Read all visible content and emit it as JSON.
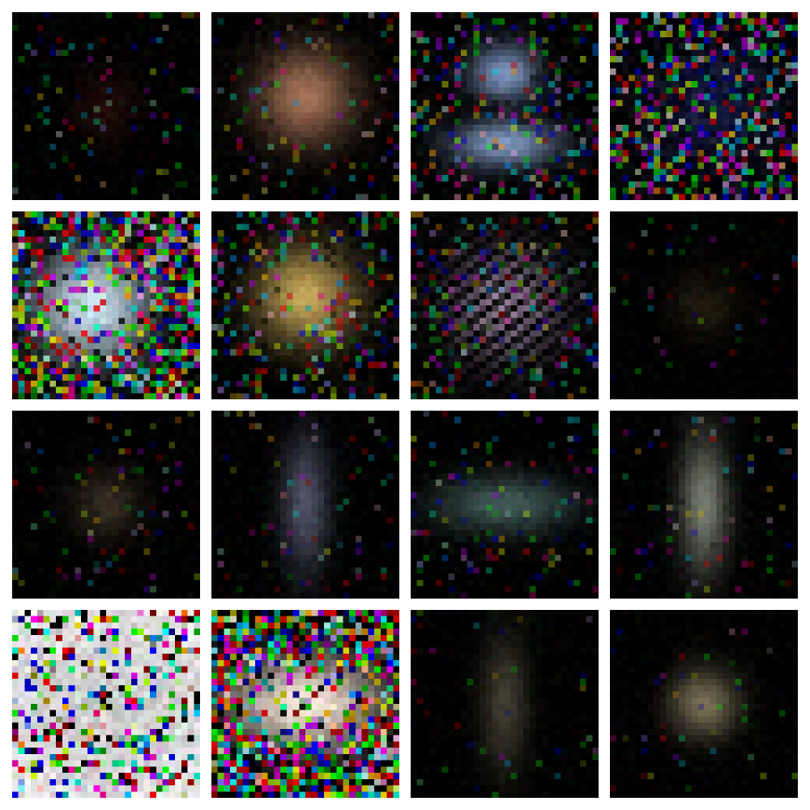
{
  "image_kind": "4x4 grid of noisy pixelated color samples on white background",
  "grid": {
    "rows": 4,
    "cols": 4,
    "pixels_per_tile": 30
  },
  "background_color": "#ffffff",
  "tiles": [
    {
      "id": "sample-1",
      "brightness": 0.18,
      "noise": 0.12,
      "tint": "#b03a2e",
      "shape": "small-blob"
    },
    {
      "id": "sample-2",
      "brightness": 0.7,
      "noise": 0.15,
      "tint": "#e8a37a",
      "shape": "blob"
    },
    {
      "id": "sample-3",
      "brightness": 0.75,
      "noise": 0.3,
      "tint": "#a8c8ff",
      "shape": "two-part"
    },
    {
      "id": "sample-4",
      "brightness": 0.35,
      "noise": 0.55,
      "tint": "#4050d0",
      "shape": "diffuse"
    },
    {
      "id": "sample-5",
      "brightness": 0.95,
      "noise": 0.75,
      "tint": "#d8f0ff",
      "shape": "large-blob"
    },
    {
      "id": "sample-6",
      "brightness": 0.8,
      "noise": 0.35,
      "tint": "#f5d070",
      "shape": "blob"
    },
    {
      "id": "sample-7",
      "brightness": 0.7,
      "noise": 0.25,
      "tint": "#e0c0e8",
      "shape": "scattered"
    },
    {
      "id": "sample-8",
      "brightness": 0.22,
      "noise": 0.05,
      "tint": "#8a6a3a",
      "shape": "small-blob"
    },
    {
      "id": "sample-9",
      "brightness": 0.3,
      "noise": 0.08,
      "tint": "#b09070",
      "shape": "small-blob"
    },
    {
      "id": "sample-10",
      "brightness": 0.45,
      "noise": 0.1,
      "tint": "#b0b8e0",
      "shape": "vertical"
    },
    {
      "id": "sample-11",
      "brightness": 0.45,
      "noise": 0.15,
      "tint": "#90c8c0",
      "shape": "horizontal"
    },
    {
      "id": "sample-12",
      "brightness": 0.55,
      "noise": 0.1,
      "tint": "#d8e0c8",
      "shape": "vertical"
    },
    {
      "id": "sample-13",
      "brightness": 1.0,
      "noise": 1.0,
      "tint": "#ffffff",
      "shape": "saturated"
    },
    {
      "id": "sample-14",
      "brightness": 1.0,
      "noise": 0.9,
      "tint": "#fff0e0",
      "shape": "wide-blob"
    },
    {
      "id": "sample-15",
      "brightness": 0.4,
      "noise": 0.06,
      "tint": "#a09878",
      "shape": "vertical"
    },
    {
      "id": "sample-16",
      "brightness": 0.55,
      "noise": 0.06,
      "tint": "#d8c89a",
      "shape": "small-blob"
    }
  ]
}
